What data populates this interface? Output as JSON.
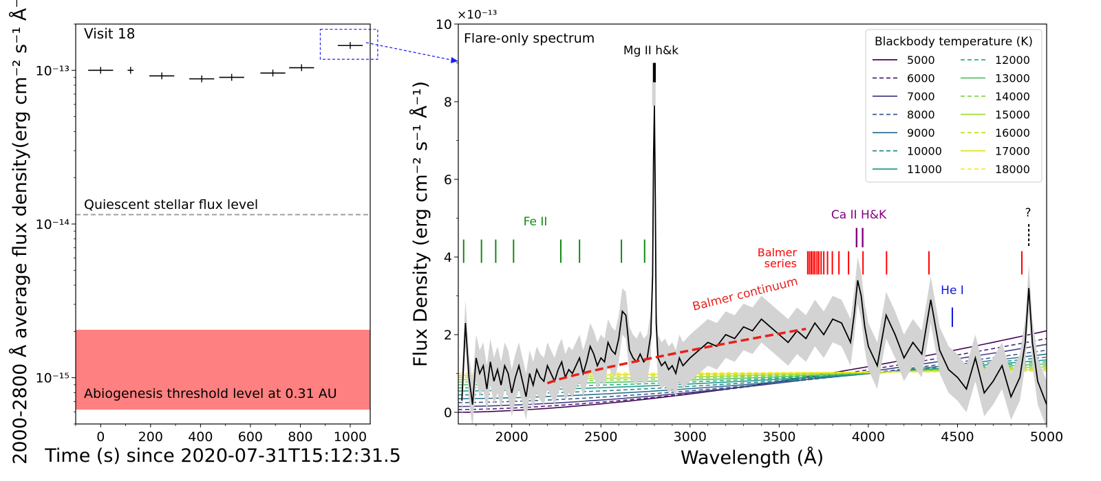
{
  "chart_data": [
    {
      "type": "scatter",
      "yscale": "log",
      "xlabel": "Time (s) since 2020-07-31T15:12:31.5",
      "ylabel": "2000-2800 Å average flux density(erg cm⁻² s⁻¹ Å⁻¹)",
      "xlim": [
        -100,
        1080
      ],
      "ylim": [
        5e-16,
        2e-13
      ],
      "xticks": [
        0,
        200,
        400,
        600,
        800,
        1000
      ],
      "yticks": [
        {
          "value": 1e-13,
          "label": "10⁻¹³"
        },
        {
          "value": 1e-14,
          "label": "10⁻¹⁴"
        },
        {
          "value": 1e-15,
          "label": "10⁻¹⁵"
        }
      ],
      "visit_label": "Visit 18",
      "points": [
        {
          "x": 0,
          "y": 1e-13,
          "xerr": 50
        },
        {
          "x": 120,
          "y": 1e-13,
          "xerr": 12
        },
        {
          "x": 245,
          "y": 9.2e-14,
          "xerr": 50
        },
        {
          "x": 405,
          "y": 8.8e-14,
          "xerr": 50
        },
        {
          "x": 525,
          "y": 9e-14,
          "xerr": 50
        },
        {
          "x": 690,
          "y": 9.6e-14,
          "xerr": 50
        },
        {
          "x": 805,
          "y": 1.04e-13,
          "xerr": 50
        },
        {
          "x": 1000,
          "y": 1.45e-13,
          "xerr": 50
        }
      ],
      "quiescent": {
        "y": 1.15e-14,
        "label": "Quiescent stellar flux level",
        "color": "#a0a0a0"
      },
      "threshold_band": {
        "y_low": 6.2e-16,
        "y_high": 2.05e-15,
        "label": "Abiogenesis threshold level at 0.31 AU",
        "color": "#ff8080"
      },
      "highlight_box": {
        "x0": 880,
        "x1": 1110,
        "y0": 1.18e-13,
        "y1": 1.85e-13,
        "color": "#1f1fff"
      }
    },
    {
      "type": "line",
      "title": "Flare-only spectrum",
      "xlabel": "Wavelength (Å)",
      "ylabel": "Flux Density (erg cm⁻² s⁻¹ Å⁻¹)",
      "y_multiplier": "×10⁻¹³",
      "xlim": [
        1700,
        5000
      ],
      "ylim": [
        -0.3,
        10
      ],
      "xticks": [
        2000,
        2500,
        3000,
        3500,
        4000,
        4500,
        5000
      ],
      "yticks": [
        0,
        2,
        4,
        6,
        8,
        10
      ],
      "observed_spectrum": {
        "x": [
          1720,
          1740,
          1760,
          1780,
          1800,
          1820,
          1840,
          1860,
          1880,
          1900,
          1920,
          1940,
          1960,
          1980,
          2000,
          2020,
          2040,
          2060,
          2080,
          2100,
          2120,
          2140,
          2160,
          2180,
          2200,
          2220,
          2240,
          2260,
          2280,
          2300,
          2320,
          2340,
          2360,
          2380,
          2400,
          2420,
          2440,
          2460,
          2480,
          2500,
          2520,
          2540,
          2560,
          2580,
          2600,
          2620,
          2640,
          2660,
          2680,
          2700,
          2720,
          2740,
          2760,
          2780,
          2790,
          2795,
          2800,
          2805,
          2810,
          2820,
          2840,
          2860,
          2880,
          2900,
          2920,
          2940,
          2960,
          2980,
          3000,
          3050,
          3100,
          3150,
          3200,
          3250,
          3300,
          3350,
          3400,
          3450,
          3500,
          3550,
          3600,
          3650,
          3700,
          3750,
          3800,
          3850,
          3900,
          3920,
          3940,
          3960,
          3980,
          4000,
          4050,
          4100,
          4150,
          4200,
          4250,
          4300,
          4350,
          4400,
          4450,
          4500,
          4550,
          4600,
          4650,
          4700,
          4750,
          4800,
          4850,
          4880,
          4900,
          4920,
          4950,
          5000
        ],
        "y": [
          0.3,
          2.3,
          0.9,
          0.2,
          1.4,
          1.0,
          1.2,
          0.6,
          1.3,
          0.8,
          1.1,
          0.7,
          1.2,
          1.0,
          0.5,
          0.9,
          1.2,
          0.8,
          0.4,
          1.0,
          0.7,
          1.1,
          0.9,
          0.8,
          1.2,
          1.0,
          0.8,
          1.1,
          1.3,
          0.9,
          1.1,
          1.0,
          1.2,
          1.4,
          1.0,
          1.3,
          1.7,
          1.5,
          1.2,
          1.4,
          1.3,
          1.8,
          1.6,
          1.5,
          1.9,
          2.6,
          2.5,
          1.6,
          1.4,
          1.3,
          1.5,
          1.3,
          1.4,
          2.0,
          3.5,
          6.5,
          7.9,
          5.5,
          2.3,
          1.4,
          1.2,
          1.3,
          1.1,
          1.2,
          1.0,
          1.4,
          1.2,
          1.3,
          1.4,
          1.6,
          1.8,
          1.7,
          2.0,
          1.9,
          2.2,
          2.1,
          2.4,
          2.2,
          2.0,
          1.8,
          2.1,
          1.9,
          2.3,
          2.0,
          2.4,
          2.3,
          1.8,
          2.5,
          3.4,
          3.0,
          2.2,
          1.7,
          1.2,
          2.5,
          2.0,
          1.4,
          1.8,
          1.5,
          2.9,
          1.6,
          1.1,
          0.9,
          0.6,
          1.4,
          0.5,
          0.8,
          1.2,
          0.4,
          0.9,
          1.8,
          3.2,
          1.8,
          0.8,
          0.2
        ]
      },
      "mgII_peak": 9.0,
      "blackbody_models": [
        {
          "T": 5000,
          "color": "#440154",
          "dash": false,
          "y_start": 0.0,
          "y_end": 2.1
        },
        {
          "T": 6000,
          "color": "#482173",
          "dash": true,
          "y_start": 0.07,
          "y_end": 1.9
        },
        {
          "T": 7000,
          "color": "#433e85",
          "dash": false,
          "y_start": 0.15,
          "y_end": 1.75
        },
        {
          "T": 8000,
          "color": "#38598c",
          "dash": true,
          "y_start": 0.25,
          "y_end": 1.6
        },
        {
          "T": 9000,
          "color": "#2d708e",
          "dash": false,
          "y_start": 0.35,
          "y_end": 1.5
        },
        {
          "T": 10000,
          "color": "#25858e",
          "dash": true,
          "y_start": 0.45,
          "y_end": 1.42
        },
        {
          "T": 11000,
          "color": "#1e9b8a",
          "dash": false,
          "y_start": 0.55,
          "y_end": 1.35
        },
        {
          "T": 12000,
          "color": "#2ab07f",
          "dash": true,
          "y_start": 0.63,
          "y_end": 1.3
        },
        {
          "T": 13000,
          "color": "#52c569",
          "dash": false,
          "y_start": 0.71,
          "y_end": 1.25
        },
        {
          "T": 14000,
          "color": "#86d549",
          "dash": true,
          "y_start": 0.78,
          "y_end": 1.21
        },
        {
          "T": 15000,
          "color": "#a0da39",
          "dash": false,
          "y_start": 0.84,
          "y_end": 1.17
        },
        {
          "T": 16000,
          "color": "#c2df23",
          "dash": true,
          "y_start": 0.9,
          "y_end": 1.13
        },
        {
          "T": 17000,
          "color": "#dde318",
          "dash": false,
          "y_start": 0.95,
          "y_end": 1.1
        },
        {
          "T": 18000,
          "color": "#fde725",
          "dash": true,
          "y_start": 1.0,
          "y_end": 1.06
        }
      ],
      "legend": {
        "title": "Blackbody temperature (K)",
        "placement": "top-right",
        "columns": 2
      },
      "balmer_continuum": {
        "x": [
          2200,
          3650
        ],
        "y": [
          0.75,
          2.15
        ],
        "label": "Balmer continuum",
        "color": "#e8201a"
      },
      "line_markers": [
        {
          "label": "Fe II",
          "color": "#118811",
          "x": [
            1730,
            1830,
            1910,
            2010,
            2275,
            2380,
            2615,
            2745
          ],
          "y0": 3.85,
          "y1": 4.45
        },
        {
          "label": "Balmer series",
          "color": "#ff0000",
          "x": [
            3660,
            3670,
            3680,
            3690,
            3700,
            3712,
            3722,
            3735,
            3750,
            3771,
            3798,
            3835,
            3889,
            3970,
            4102,
            4340,
            4861
          ],
          "y0": 3.55,
          "y1": 4.15
        },
        {
          "label": "Ca II H&K",
          "color": "#800080",
          "x": [
            3934,
            3968
          ],
          "y0": 4.25,
          "y1": 4.75
        },
        {
          "label": "He I",
          "color": "#1010dd",
          "x": [
            4471
          ],
          "y0": 2.2,
          "y1": 2.7
        },
        {
          "label": "?",
          "color": "#000000",
          "x": [
            4900
          ],
          "y0": 4.25,
          "y1": 4.85
        },
        {
          "label": "Mg II h&k",
          "color": "#000000",
          "x": [
            2800
          ],
          "y0": 9.0,
          "y1": 9.0
        }
      ]
    }
  ]
}
